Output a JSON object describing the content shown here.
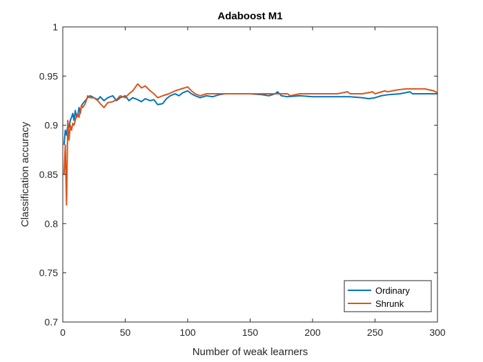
{
  "chart_data": {
    "type": "line",
    "title": "Adaboost M1",
    "xlabel": "Number of weak learners",
    "ylabel": "Classification accuracy",
    "xlim": [
      0,
      300
    ],
    "ylim": [
      0.7,
      1
    ],
    "xticks": [
      "0",
      "50",
      "100",
      "150",
      "200",
      "250",
      "300"
    ],
    "yticks": [
      "0.7",
      "0.75",
      "0.8",
      "0.85",
      "0.9",
      "0.95",
      "1"
    ],
    "grid": false,
    "legend_position": "bottom-right",
    "series": [
      {
        "name": "Ordinary",
        "color": "#0072BD",
        "points": [
          [
            1,
            0.88
          ],
          [
            2,
            0.895
          ],
          [
            3,
            0.89
          ],
          [
            4,
            0.9
          ],
          [
            5,
            0.898
          ],
          [
            6,
            0.905
          ],
          [
            7,
            0.908
          ],
          [
            8,
            0.912
          ],
          [
            9,
            0.905
          ],
          [
            10,
            0.915
          ],
          [
            11,
            0.908
          ],
          [
            12,
            0.91
          ],
          [
            13,
            0.918
          ],
          [
            14,
            0.912
          ],
          [
            15,
            0.92
          ],
          [
            16,
            0.922
          ],
          [
            18,
            0.925
          ],
          [
            20,
            0.928
          ],
          [
            22,
            0.93
          ],
          [
            25,
            0.928
          ],
          [
            28,
            0.926
          ],
          [
            30,
            0.929
          ],
          [
            33,
            0.925
          ],
          [
            36,
            0.928
          ],
          [
            40,
            0.93
          ],
          [
            43,
            0.925
          ],
          [
            46,
            0.928
          ],
          [
            50,
            0.93
          ],
          [
            53,
            0.925
          ],
          [
            56,
            0.928
          ],
          [
            60,
            0.926
          ],
          [
            63,
            0.924
          ],
          [
            66,
            0.927
          ],
          [
            70,
            0.925
          ],
          [
            73,
            0.926
          ],
          [
            76,
            0.921
          ],
          [
            80,
            0.922
          ],
          [
            83,
            0.927
          ],
          [
            86,
            0.93
          ],
          [
            90,
            0.932
          ],
          [
            93,
            0.93
          ],
          [
            96,
            0.933
          ],
          [
            100,
            0.935
          ],
          [
            103,
            0.932
          ],
          [
            106,
            0.93
          ],
          [
            110,
            0.928
          ],
          [
            115,
            0.93
          ],
          [
            120,
            0.929
          ],
          [
            125,
            0.931
          ],
          [
            130,
            0.932
          ],
          [
            140,
            0.932
          ],
          [
            150,
            0.932
          ],
          [
            160,
            0.931
          ],
          [
            165,
            0.93
          ],
          [
            170,
            0.932
          ],
          [
            172,
            0.934
          ],
          [
            175,
            0.93
          ],
          [
            180,
            0.929
          ],
          [
            190,
            0.93
          ],
          [
            200,
            0.929
          ],
          [
            210,
            0.929
          ],
          [
            220,
            0.929
          ],
          [
            230,
            0.929
          ],
          [
            240,
            0.928
          ],
          [
            245,
            0.927
          ],
          [
            250,
            0.928
          ],
          [
            255,
            0.93
          ],
          [
            260,
            0.931
          ],
          [
            270,
            0.932
          ],
          [
            278,
            0.934
          ],
          [
            280,
            0.932
          ],
          [
            290,
            0.932
          ],
          [
            300,
            0.932
          ]
        ]
      },
      {
        "name": "Shrunk",
        "color": "#D95319",
        "points": [
          [
            1,
            0.85
          ],
          [
            2,
            0.88
          ],
          [
            3,
            0.819
          ],
          [
            4,
            0.905
          ],
          [
            5,
            0.885
          ],
          [
            6,
            0.9
          ],
          [
            7,
            0.895
          ],
          [
            8,
            0.902
          ],
          [
            9,
            0.9
          ],
          [
            10,
            0.905
          ],
          [
            11,
            0.91
          ],
          [
            12,
            0.912
          ],
          [
            13,
            0.908
          ],
          [
            14,
            0.915
          ],
          [
            15,
            0.92
          ],
          [
            16,
            0.918
          ],
          [
            18,
            0.922
          ],
          [
            20,
            0.93
          ],
          [
            22,
            0.928
          ],
          [
            25,
            0.928
          ],
          [
            28,
            0.925
          ],
          [
            30,
            0.922
          ],
          [
            33,
            0.918
          ],
          [
            36,
            0.923
          ],
          [
            40,
            0.924
          ],
          [
            43,
            0.926
          ],
          [
            46,
            0.93
          ],
          [
            50,
            0.928
          ],
          [
            53,
            0.932
          ],
          [
            56,
            0.935
          ],
          [
            60,
            0.942
          ],
          [
            63,
            0.938
          ],
          [
            66,
            0.94
          ],
          [
            70,
            0.935
          ],
          [
            73,
            0.932
          ],
          [
            76,
            0.928
          ],
          [
            80,
            0.93
          ],
          [
            85,
            0.932
          ],
          [
            90,
            0.935
          ],
          [
            95,
            0.937
          ],
          [
            100,
            0.939
          ],
          [
            103,
            0.935
          ],
          [
            106,
            0.932
          ],
          [
            110,
            0.93
          ],
          [
            115,
            0.932
          ],
          [
            120,
            0.932
          ],
          [
            130,
            0.932
          ],
          [
            140,
            0.932
          ],
          [
            150,
            0.932
          ],
          [
            160,
            0.932
          ],
          [
            170,
            0.932
          ],
          [
            180,
            0.932
          ],
          [
            182,
            0.93
          ],
          [
            190,
            0.932
          ],
          [
            200,
            0.932
          ],
          [
            210,
            0.932
          ],
          [
            220,
            0.932
          ],
          [
            228,
            0.934
          ],
          [
            230,
            0.932
          ],
          [
            240,
            0.932
          ],
          [
            248,
            0.934
          ],
          [
            250,
            0.932
          ],
          [
            258,
            0.935
          ],
          [
            260,
            0.934
          ],
          [
            268,
            0.936
          ],
          [
            275,
            0.937
          ],
          [
            280,
            0.937
          ],
          [
            290,
            0.937
          ],
          [
            297,
            0.935
          ],
          [
            300,
            0.933
          ]
        ]
      }
    ]
  }
}
